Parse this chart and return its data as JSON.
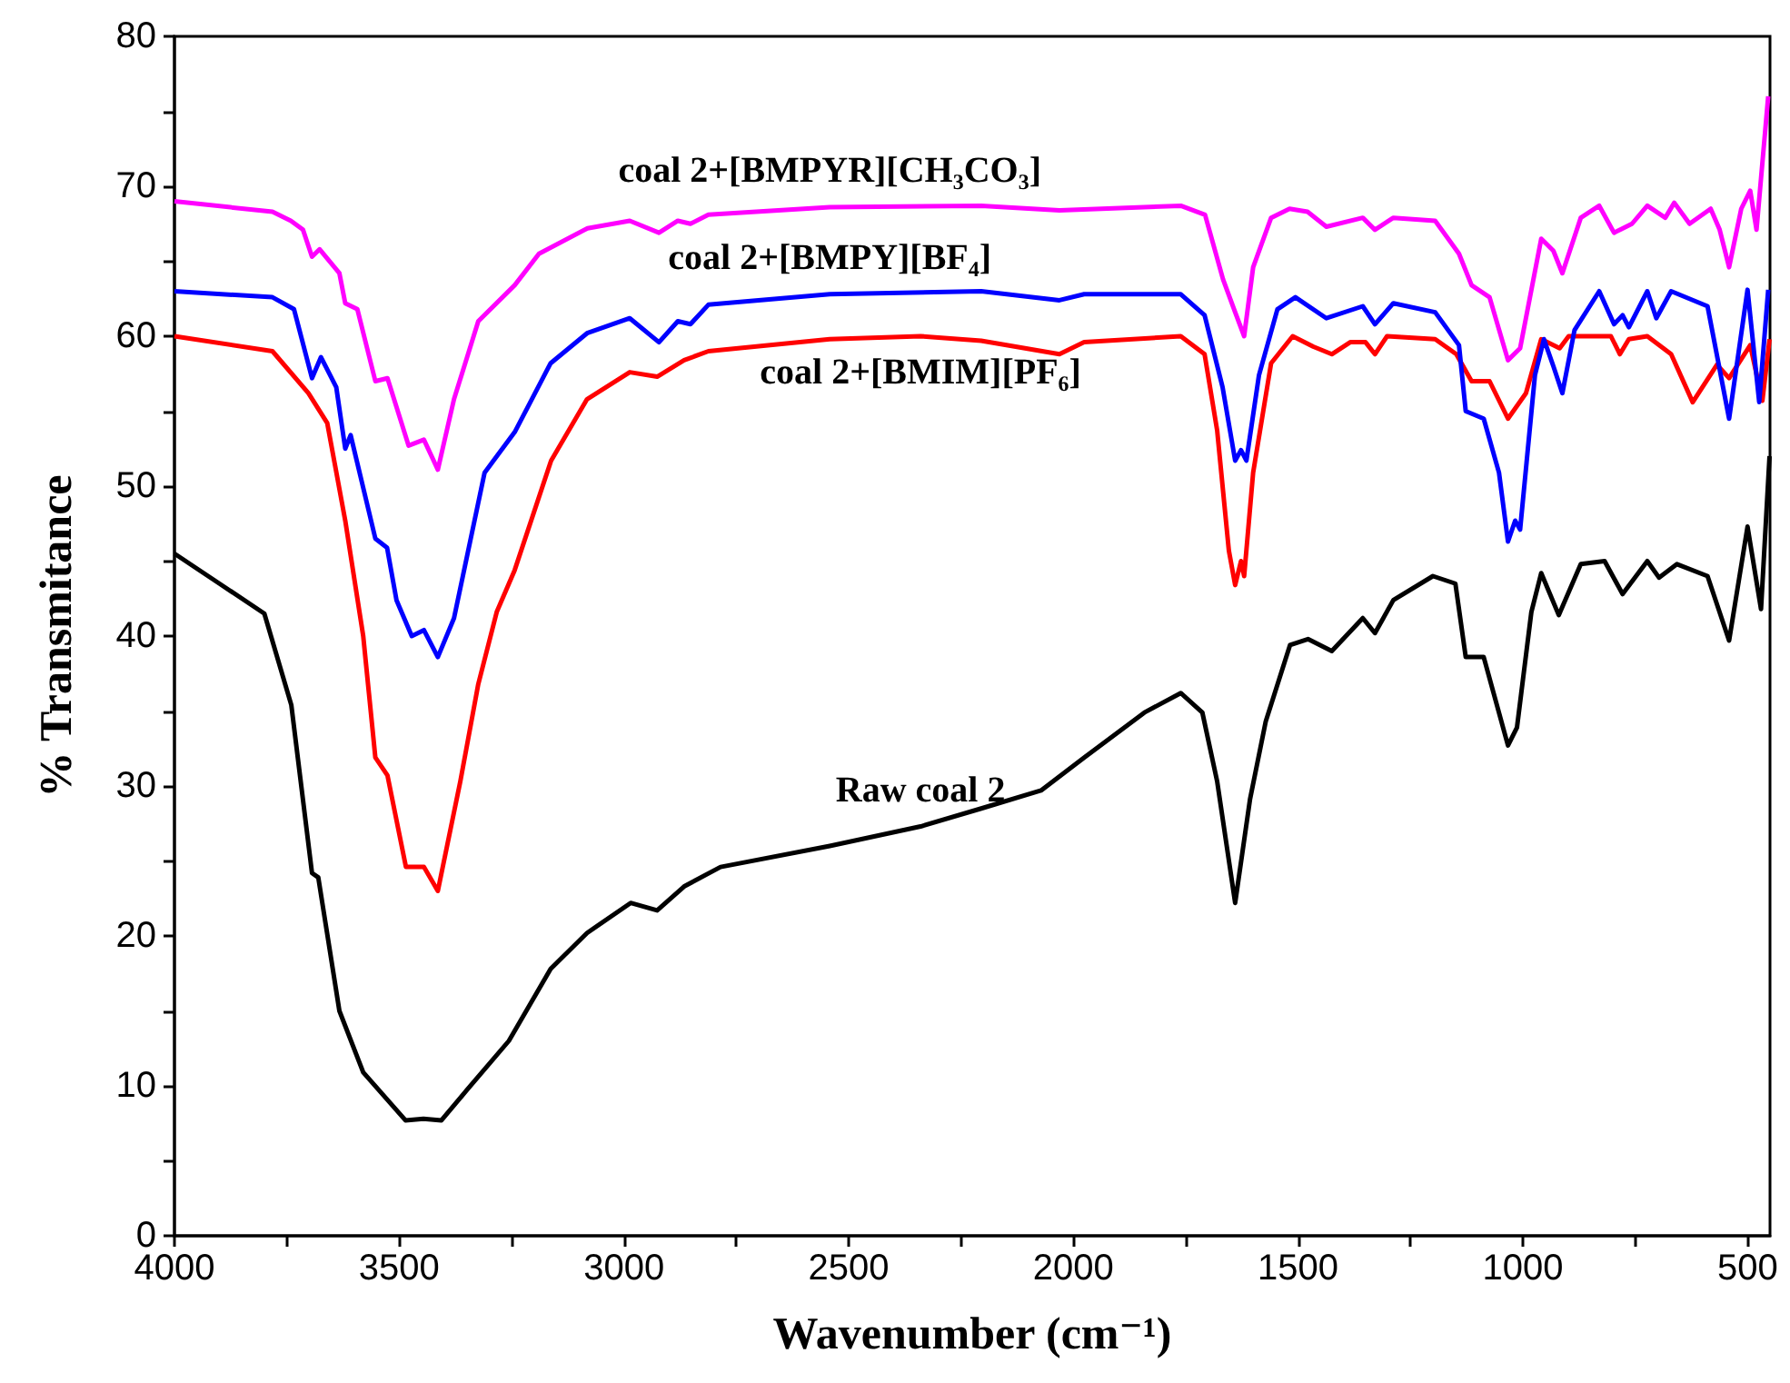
{
  "chart_data": {
    "type": "line",
    "xlabel": "Wavenumber (cm⁻¹)",
    "ylabel": "% Transmitance",
    "xlim": [
      4000,
      450
    ],
    "ylim": [
      0,
      80
    ],
    "xticks": [
      4000,
      {
        "value": 3750,
        "label": null
      },
      3500,
      {
        "value": 3250,
        "label": null
      },
      3000,
      {
        "value": 2750,
        "label": null
      },
      2500,
      {
        "value": 2250,
        "label": null
      },
      2000,
      {
        "value": 1750,
        "label": null
      },
      1500,
      {
        "value": 1250,
        "label": null
      },
      1000,
      {
        "value": 750,
        "label": null
      },
      500
    ],
    "yticks": [
      0,
      {
        "value": 5,
        "label": null
      },
      10,
      {
        "value": 15,
        "label": null
      },
      20,
      {
        "value": 25,
        "label": null
      },
      30,
      {
        "value": 35,
        "label": null
      },
      40,
      {
        "value": 45,
        "label": null
      },
      50,
      {
        "value": 55,
        "label": null
      },
      60,
      {
        "value": 65,
        "label": null
      },
      70,
      {
        "value": 75,
        "label": null
      },
      80
    ],
    "series": [
      {
        "name": "Raw coal 2",
        "color": "#000000",
        "x": [
          4000,
          3900,
          3800,
          3740,
          3694,
          3680,
          3633,
          3580,
          3486,
          3446,
          3406,
          3350,
          3256,
          3163,
          3082,
          2985,
          2926,
          2866,
          2785,
          2542,
          2340,
          2205,
          2072,
          1976,
          1842,
          1761,
          1713,
          1680,
          1640,
          1607,
          1572,
          1518,
          1478,
          1425,
          1356,
          1329,
          1288,
          1200,
          1150,
          1127,
          1087,
          1033,
          1013,
          981,
          959,
          920,
          871,
          818,
          778,
          723,
          697,
          657,
          589,
          541,
          500,
          470,
          451
        ],
        "values": [
          45.5,
          43.5,
          41.5,
          35.4,
          24.2,
          23.9,
          15,
          10.9,
          7.7,
          7.8,
          7.7,
          9.7,
          13,
          17.8,
          20.2,
          22.2,
          21.7,
          23.3,
          24.6,
          26,
          27.3,
          28.5,
          29.7,
          31.9,
          34.9,
          36.2,
          34.9,
          30.3,
          22.2,
          29.1,
          34.3,
          39.4,
          39.8,
          39,
          41.2,
          40.2,
          42.4,
          44,
          43.5,
          38.6,
          38.6,
          32.7,
          33.9,
          41.6,
          44.2,
          41.4,
          44.8,
          45,
          42.8,
          45,
          43.9,
          44.8,
          44,
          39.7,
          47.3,
          41.8,
          52
        ]
      },
      {
        "name": "coal 2+[BMIM][PF₆]",
        "color": "#ff0000",
        "x": [
          4000,
          3782,
          3702,
          3660,
          3620,
          3580,
          3553,
          3526,
          3485,
          3445,
          3414,
          3364,
          3324,
          3283,
          3243,
          3162,
          3082,
          2987,
          2926,
          2866,
          2812,
          2542,
          2340,
          2205,
          2031,
          1976,
          1761,
          1708,
          1680,
          1654,
          1640,
          1627,
          1620,
          1600,
          1560,
          1512,
          1466,
          1425,
          1384,
          1350,
          1329,
          1302,
          1195,
          1148,
          1114,
          1074,
          1033,
          993,
          959,
          918,
          898,
          804,
          784,
          764,
          723,
          670,
          622,
          568,
          541,
          494,
          467,
          451
        ],
        "values": [
          60,
          59,
          56.2,
          54.2,
          47.7,
          40,
          31.9,
          30.7,
          24.6,
          24.6,
          23,
          30.3,
          36.8,
          41.6,
          44.4,
          51.7,
          55.8,
          57.6,
          57.3,
          58.4,
          59,
          59.8,
          60,
          59.7,
          58.8,
          59.6,
          60,
          58.8,
          53.7,
          45.7,
          43.4,
          45,
          44,
          50.9,
          58.2,
          60,
          59.3,
          58.8,
          59.6,
          59.6,
          58.8,
          60,
          59.8,
          58.8,
          57,
          57,
          54.5,
          56.2,
          59.8,
          59.2,
          60,
          60,
          58.8,
          59.8,
          60,
          58.8,
          55.6,
          58.1,
          57.2,
          59.4,
          55.7,
          59.8
        ]
      },
      {
        "name": "coal 2+[BMPY][BF₄]",
        "color": "#0000ff",
        "x": [
          4000,
          3782,
          3734,
          3694,
          3674,
          3640,
          3620,
          3608,
          3553,
          3527,
          3506,
          3472,
          3445,
          3414,
          3378,
          3310,
          3243,
          3163,
          3082,
          2987,
          2922,
          2880,
          2852,
          2812,
          2542,
          2205,
          2031,
          1976,
          1761,
          1708,
          1668,
          1640,
          1627,
          1615,
          1587,
          1546,
          1506,
          1437,
          1356,
          1329,
          1288,
          1195,
          1142,
          1127,
          1087,
          1053,
          1033,
          1017,
          1006,
          973,
          953,
          932,
          912,
          885,
          830,
          797,
          778,
          764,
          723,
          703,
          670,
          589,
          541,
          500,
          474,
          454
        ],
        "values": [
          63,
          62.6,
          61.8,
          57.2,
          58.6,
          56.6,
          52.5,
          53.4,
          46.5,
          45.9,
          42.4,
          40,
          40.4,
          38.6,
          41.2,
          50.9,
          53.6,
          58.2,
          60.2,
          61.2,
          59.6,
          61,
          60.8,
          62.1,
          62.8,
          63,
          62.4,
          62.8,
          62.8,
          61.4,
          56.6,
          51.7,
          52.4,
          51.7,
          57.4,
          61.8,
          62.6,
          61.2,
          62,
          60.8,
          62.2,
          61.6,
          59.4,
          55,
          54.5,
          50.9,
          46.3,
          47.7,
          47.1,
          57.4,
          59.8,
          58,
          56.2,
          60.4,
          63,
          60.8,
          61.4,
          60.6,
          63,
          61.2,
          63,
          62,
          54.5,
          63.1,
          55.6,
          63.1
        ]
      },
      {
        "name": "coal 2+[BMPYR][CH₃CO₃]",
        "color": "#ff00ff",
        "x": [
          4000,
          3782,
          3741,
          3714,
          3694,
          3677,
          3633,
          3620,
          3593,
          3553,
          3526,
          3479,
          3445,
          3414,
          3378,
          3324,
          3243,
          3189,
          3081,
          2987,
          2922,
          2880,
          2852,
          2812,
          2542,
          2205,
          2031,
          1761,
          1707,
          1667,
          1640,
          1620,
          1600,
          1560,
          1519,
          1479,
          1437,
          1356,
          1329,
          1288,
          1195,
          1142,
          1114,
          1074,
          1033,
          1006,
          959,
          932,
          912,
          871,
          830,
          797,
          757,
          723,
          683,
          663,
          629,
          582,
          562,
          541,
          514,
          494,
          480,
          454
        ],
        "values": [
          69,
          68.3,
          67.7,
          67.1,
          65.3,
          65.8,
          64.2,
          62.2,
          61.8,
          57,
          57.2,
          52.7,
          53.1,
          51.1,
          55.8,
          61,
          63.4,
          65.5,
          67.2,
          67.7,
          66.9,
          67.7,
          67.5,
          68.1,
          68.6,
          68.7,
          68.4,
          68.7,
          68.1,
          63.8,
          61.6,
          60,
          64.6,
          67.9,
          68.5,
          68.3,
          67.3,
          67.9,
          67.1,
          67.9,
          67.7,
          65.5,
          63.4,
          62.6,
          58.4,
          59.2,
          66.5,
          65.7,
          64.2,
          67.9,
          68.7,
          66.9,
          67.5,
          68.7,
          67.9,
          68.9,
          67.5,
          68.5,
          67.1,
          64.6,
          68.5,
          69.7,
          67.1,
          76
        ]
      }
    ]
  }
}
